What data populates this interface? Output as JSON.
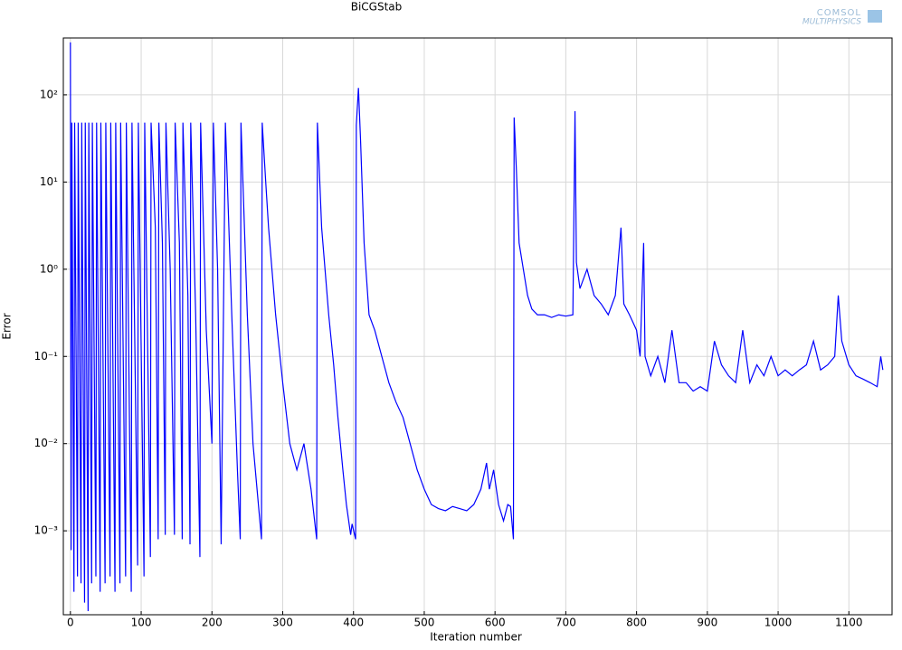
{
  "chart_data": {
    "type": "line",
    "title": "BiCGStab",
    "xlabel": "Iteration number",
    "ylabel": "Error",
    "watermark": [
      "COMSOL",
      "MULTIPHYSICS"
    ],
    "log_y": true,
    "grid": true,
    "xlim": [
      -10,
      1161
    ],
    "ylim": [
      0.000109,
      449
    ],
    "xticks": [
      0,
      100,
      200,
      300,
      400,
      500,
      600,
      700,
      800,
      900,
      1000,
      1100
    ],
    "yticks": [
      {
        "value": 0.001,
        "label": "10⁻³"
      },
      {
        "value": 0.01,
        "label": "10⁻²"
      },
      {
        "value": 0.1,
        "label": "10⁻¹"
      },
      {
        "value": 1,
        "label": "10⁰"
      },
      {
        "value": 10,
        "label": "10¹"
      },
      {
        "value": 100,
        "label": "10²"
      }
    ],
    "series": [
      {
        "color": "#0000ff",
        "x": [
          0,
          1,
          2,
          5,
          6,
          10,
          11,
          15,
          16,
          20,
          21,
          25,
          26,
          30,
          31,
          36,
          37,
          42,
          43,
          49,
          50,
          56,
          57,
          63,
          64,
          70,
          71,
          78,
          79,
          86,
          87,
          95,
          96,
          104,
          105,
          113,
          114,
          120,
          124,
          125,
          130,
          134,
          135,
          141,
          147,
          148,
          154,
          158,
          159,
          166,
          169,
          170,
          177,
          183,
          184,
          192,
          200,
          202,
          208,
          213,
          219,
          228,
          236,
          240,
          241,
          250,
          258,
          270,
          271,
          276,
          280,
          290,
          300,
          310,
          320,
          330,
          340,
          348,
          349,
          355,
          365,
          372,
          378,
          385,
          390,
          396,
          398,
          403,
          404,
          407,
          410,
          415,
          422,
          430,
          440,
          450,
          460,
          470,
          480,
          490,
          500,
          510,
          520,
          530,
          540,
          550,
          560,
          570,
          580,
          588,
          592,
          598,
          605,
          612,
          618,
          622,
          626,
          627,
          630,
          634,
          640,
          646,
          652,
          660,
          670,
          680,
          690,
          700,
          710,
          713,
          715,
          720,
          730,
          740,
          750,
          760,
          770,
          778,
          782,
          790,
          800,
          805,
          810,
          812,
          820,
          830,
          840,
          850,
          860,
          870,
          880,
          890,
          900,
          910,
          920,
          930,
          940,
          950,
          960,
          970,
          980,
          990,
          1000,
          1010,
          1020,
          1030,
          1040,
          1050,
          1060,
          1070,
          1080,
          1085,
          1090,
          1100,
          1110,
          1120,
          1130,
          1140,
          1145,
          1148
        ],
        "values": [
          400,
          0.0006,
          48,
          0.0002,
          48,
          0.0003,
          48,
          0.00025,
          48,
          0.00015,
          48,
          0.00012,
          48,
          0.00025,
          48,
          0.0003,
          48,
          0.0002,
          48,
          0.00025,
          48,
          0.0003,
          48,
          0.0002,
          48,
          0.00025,
          48,
          0.0003,
          48,
          0.0002,
          48,
          0.0004,
          48,
          0.0003,
          48,
          0.0005,
          48,
          3,
          0.0008,
          48,
          2,
          0.0009,
          48,
          1,
          0.0009,
          48,
          2,
          0.0008,
          48,
          0.5,
          0.0007,
          48,
          0.3,
          0.0005,
          48,
          0.2,
          0.01,
          48,
          1,
          0.0007,
          48,
          0.3,
          0.005,
          0.0008,
          48,
          0.3,
          0.01,
          0.0008,
          48,
          10,
          3,
          0.3,
          0.05,
          0.01,
          0.005,
          0.01,
          0.003,
          0.0008,
          48,
          3,
          0.3,
          0.08,
          0.02,
          0.005,
          0.002,
          0.0009,
          0.0012,
          0.0008,
          45,
          120,
          30,
          2,
          0.3,
          0.2,
          0.1,
          0.05,
          0.03,
          0.02,
          0.01,
          0.005,
          0.003,
          0.002,
          0.0018,
          0.0017,
          0.0019,
          0.0018,
          0.0017,
          0.002,
          0.003,
          0.006,
          0.003,
          0.005,
          0.002,
          0.0013,
          0.002,
          0.0019,
          0.0008,
          55,
          15,
          2,
          1,
          0.5,
          0.35,
          0.3,
          0.3,
          0.28,
          0.3,
          0.29,
          0.3,
          65,
          1.2,
          0.6,
          1,
          0.5,
          0.4,
          0.3,
          0.5,
          3,
          0.4,
          0.3,
          0.2,
          0.1,
          2,
          0.1,
          0.06,
          0.1,
          0.05,
          0.2,
          0.05,
          0.05,
          0.04,
          0.045,
          0.04,
          0.15,
          0.08,
          0.06,
          0.05,
          0.2,
          0.05,
          0.08,
          0.06,
          0.1,
          0.06,
          0.07,
          0.06,
          0.07,
          0.08,
          0.15,
          0.07,
          0.08,
          0.1,
          0.5,
          0.15,
          0.08,
          0.06,
          0.055,
          0.05,
          0.045,
          0.1,
          0.07
        ]
      }
    ]
  }
}
